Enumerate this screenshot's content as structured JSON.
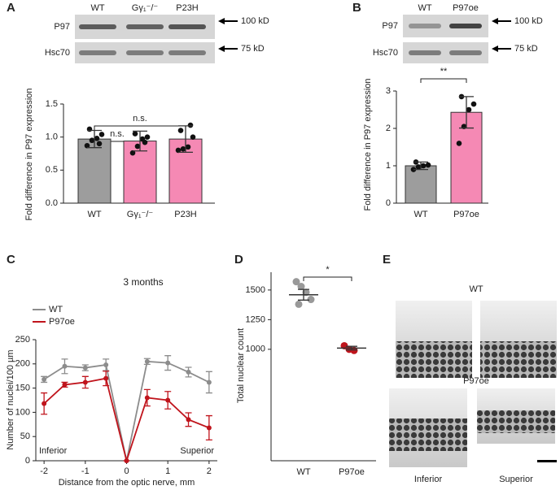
{
  "figure": {
    "panel_labels": [
      "A",
      "B",
      "C",
      "D",
      "E"
    ]
  },
  "blots": [
    {
      "lanes": [
        "WT",
        "Gγ₁⁻/⁻",
        "P23H"
      ],
      "rows": [
        "P97",
        "Hsc70"
      ],
      "markers": [
        "100 kD",
        "75 kD"
      ]
    },
    {
      "lanes": [
        "WT",
        "P97oe"
      ],
      "rows": [
        "P97",
        "Hsc70"
      ],
      "markers": [
        "100 kD",
        "75 kD"
      ]
    }
  ],
  "histology": {
    "groups": [
      "WT",
      "P97oe"
    ],
    "regions": [
      "Inferior",
      "Superior"
    ]
  },
  "chart_data": [
    {
      "type": "bar",
      "y_label": "Fold difference in P97 expression",
      "categories": [
        "WT",
        "Gγ₁⁻/⁻",
        "P23H"
      ],
      "values": [
        0.97,
        0.94,
        0.97
      ],
      "errors": [
        0.13,
        0.15,
        0.2
      ],
      "points": [
        [
          0.87,
          0.95,
          0.98,
          1.04,
          1.12,
          0.9
        ],
        [
          0.76,
          0.86,
          0.97,
          1.0,
          1.05,
          0.92
        ],
        [
          0.8,
          0.82,
          0.85,
          1.0,
          1.1,
          1.18
        ]
      ],
      "colors": [
        "#9d9d9d",
        "#f589b4",
        "#f589b4"
      ],
      "ylim": [
        0,
        1.5
      ],
      "yticks": [
        {
          "value": 0,
          "label": "0.0"
        },
        0.5,
        {
          "value": 1,
          "label": "1.0"
        },
        1.5
      ],
      "annotations": [
        "n.s.",
        "n.s."
      ]
    },
    {
      "type": "bar",
      "y_label": "Fold difference in P97 expression",
      "categories": [
        "WT",
        "P97oe"
      ],
      "values": [
        1.0,
        2.43
      ],
      "errors": [
        0.1,
        0.42
      ],
      "points": [
        [
          0.9,
          0.97,
          1.0,
          1.02,
          1.1
        ],
        [
          1.6,
          2.05,
          2.5,
          2.65,
          2.85
        ]
      ],
      "colors": [
        "#9d9d9d",
        "#f589b4"
      ],
      "ylim": [
        0,
        3
      ],
      "yticks": [
        0,
        1,
        2,
        3
      ],
      "annotations": [
        "**"
      ]
    },
    {
      "type": "line",
      "title": "3 months",
      "x_label": "Distance from the optic nerve, mm",
      "y_label": "Number of nuclei/100 µm",
      "x": [
        -2,
        -1.5,
        -1,
        -0.5,
        0,
        0.5,
        1,
        1.5,
        2
      ],
      "series": [
        {
          "name": "WT",
          "color": "#8c8c8c",
          "values": [
            168,
            195,
            192,
            198,
            0,
            205,
            202,
            183,
            162
          ],
          "errors": [
            6,
            15,
            6,
            12,
            0,
            6,
            15,
            10,
            22
          ]
        },
        {
          "name": "P97oe",
          "color": "#c0141c",
          "values": [
            118,
            157,
            162,
            170,
            0,
            130,
            125,
            85,
            68
          ],
          "errors": [
            22,
            5,
            12,
            15,
            0,
            17,
            18,
            14,
            25
          ]
        }
      ],
      "xlim": [
        -2.2,
        2.2
      ],
      "xticks": [
        -2,
        -1,
        0,
        1,
        2
      ],
      "ylim": [
        0,
        250
      ],
      "yticks": [
        0,
        50,
        100,
        150,
        200,
        250
      ],
      "annotations": [
        "Inferior",
        "Superior"
      ]
    },
    {
      "type": "dot",
      "y_label": "Total nuclear count",
      "categories": [
        "WT",
        "P97oe"
      ],
      "values": [
        1460,
        1010
      ],
      "errors": [
        45,
        15
      ],
      "points": [
        [
          1570,
          1530,
          1480,
          1420,
          1380
        ],
        [
          1030,
          1000,
          990
        ]
      ],
      "colors": [
        "#999999",
        "#c0141c"
      ],
      "ylim": [
        60,
        1650
      ],
      "yticks": [
        1000,
        1250,
        1500
      ],
      "annotations": [
        "*"
      ]
    }
  ]
}
